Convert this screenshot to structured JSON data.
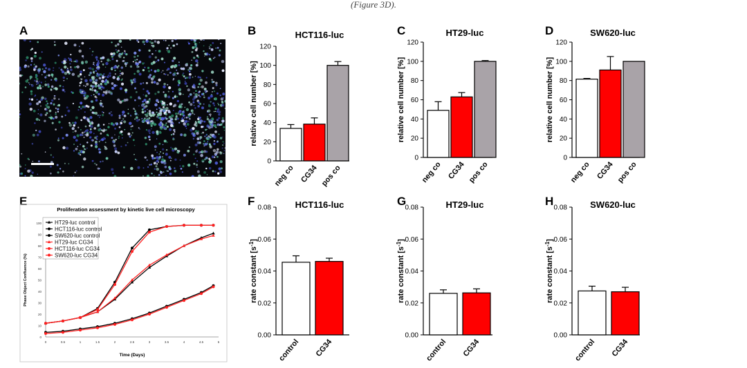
{
  "header_fragment": "(Figure 3D).",
  "panel_a": {
    "letter": "A"
  },
  "chart_data": [
    {
      "id": "B",
      "type": "bar",
      "title": "HCT116-luc",
      "ylabel": "relative cell number [%]",
      "ylim": [
        0,
        120
      ],
      "yticks": [
        "0",
        "20",
        "40",
        "60",
        "80",
        "100",
        "120"
      ],
      "categories": [
        "neg co",
        "CG34",
        "pos co"
      ],
      "values": [
        34,
        38.5,
        100
      ],
      "errors": [
        4,
        6.5,
        4
      ],
      "colors": [
        "#ffffff",
        "#ff0000",
        "#a9a3a8"
      ]
    },
    {
      "id": "C",
      "type": "bar",
      "title": "HT29-luc",
      "ylabel": "relative cell number [%]",
      "ylim": [
        0,
        120
      ],
      "yticks": [
        "0",
        "20",
        "40",
        "60",
        "80",
        "100",
        "120"
      ],
      "categories": [
        "neg co",
        "CG34",
        "pos co"
      ],
      "values": [
        49,
        63,
        100
      ],
      "errors": [
        9,
        4.5,
        0.8
      ],
      "colors": [
        "#ffffff",
        "#ff0000",
        "#a9a3a8"
      ]
    },
    {
      "id": "D",
      "type": "bar",
      "title": "SW620-luc",
      "ylabel": "relative cell number [%]",
      "ylim": [
        0,
        120
      ],
      "yticks": [
        "0",
        "20",
        "40",
        "60",
        "80",
        "100",
        "120"
      ],
      "categories": [
        "neg co",
        "CG34",
        "pos co"
      ],
      "values": [
        81.5,
        91,
        100
      ],
      "errors": [
        0.7,
        14,
        0
      ],
      "colors": [
        "#ffffff",
        "#ff0000",
        "#a9a3a8"
      ]
    },
    {
      "id": "E",
      "type": "line",
      "title": "Proliferation assessment by kinetic live cell microscopy",
      "xlabel": "Time (Days)",
      "ylabel": "Phase Object Confluence (%)",
      "xlim": [
        0,
        5
      ],
      "ylim": [
        0,
        100
      ],
      "xticks": [
        "0",
        "0.5",
        "1",
        "1.5",
        "2",
        "2.5",
        "3",
        "3.5",
        "4",
        "4.5",
        "5"
      ],
      "yticks": [
        "0",
        "10",
        "20",
        "30",
        "40",
        "50",
        "60",
        "70",
        "80",
        "90",
        "100"
      ],
      "x": [
        0,
        0.5,
        1,
        1.5,
        2,
        2.5,
        3,
        3.5,
        4,
        4.5,
        4.85
      ],
      "series": [
        {
          "name": "HT29-luc control",
          "color": "#000000",
          "marker": "triangle",
          "values": [
            12,
            14,
            17,
            22,
            33,
            48,
            61,
            71,
            80,
            87,
            91
          ]
        },
        {
          "name": "HCT116-luc control",
          "color": "#000000",
          "marker": "circle",
          "values": [
            12,
            14,
            17,
            25,
            48,
            78,
            94,
            97,
            98,
            98,
            98
          ]
        },
        {
          "name": "SW620-luc control",
          "color": "#000000",
          "marker": "circle",
          "values": [
            4,
            5,
            7,
            9,
            12,
            16,
            21,
            27,
            33,
            39,
            45
          ]
        },
        {
          "name": "HT29-luc CG34",
          "color": "#ff2020",
          "marker": "triangle",
          "values": [
            12,
            14,
            17,
            22,
            34,
            50,
            63,
            72,
            80,
            86,
            89
          ]
        },
        {
          "name": "HCT116-luc CG34",
          "color": "#ff2020",
          "marker": "circle",
          "values": [
            12,
            14,
            17,
            24,
            46,
            75,
            92,
            97,
            98,
            98,
            98
          ]
        },
        {
          "name": "SW620-luc CG34",
          "color": "#ff2020",
          "marker": "circle",
          "values": [
            3,
            4,
            6,
            8,
            11,
            15,
            20,
            26,
            32,
            38,
            44
          ]
        }
      ],
      "legend": "top-left"
    },
    {
      "id": "F",
      "type": "bar",
      "title": "HCT116-luc",
      "ylabel": "rate constant [s",
      "ylabel_sup": "-1",
      "ylabel_tail": "]",
      "ylim": [
        0,
        0.08
      ],
      "yticks": [
        "0.00",
        "0.02",
        "0.04",
        "0.06",
        "0.08"
      ],
      "categories": [
        "control",
        "CG34"
      ],
      "values": [
        0.0455,
        0.046
      ],
      "errors": [
        0.004,
        0.002
      ],
      "colors": [
        "#ffffff",
        "#ff0000"
      ]
    },
    {
      "id": "G",
      "type": "bar",
      "title": "HT29-luc",
      "ylabel": "rate constant [s",
      "ylabel_sup": "-1",
      "ylabel_tail": "]",
      "ylim": [
        0,
        0.08
      ],
      "yticks": [
        "0.00",
        "0.02",
        "0.04",
        "0.06",
        "0.08"
      ],
      "categories": [
        "control",
        "CG34"
      ],
      "values": [
        0.026,
        0.0263
      ],
      "errors": [
        0.0022,
        0.0025
      ],
      "colors": [
        "#ffffff",
        "#ff0000"
      ]
    },
    {
      "id": "H",
      "type": "bar",
      "title": "SW620-luc",
      "ylabel": "rate constant [s",
      "ylabel_sup": "-1",
      "ylabel_tail": "]",
      "ylim": [
        0,
        0.08
      ],
      "yticks": [
        "0.00",
        "0.02",
        "0.04",
        "0.06",
        "0.08"
      ],
      "categories": [
        "control",
        "CG34"
      ],
      "values": [
        0.0275,
        0.027
      ],
      "errors": [
        0.003,
        0.0028
      ],
      "colors": [
        "#ffffff",
        "#ff0000"
      ]
    }
  ]
}
